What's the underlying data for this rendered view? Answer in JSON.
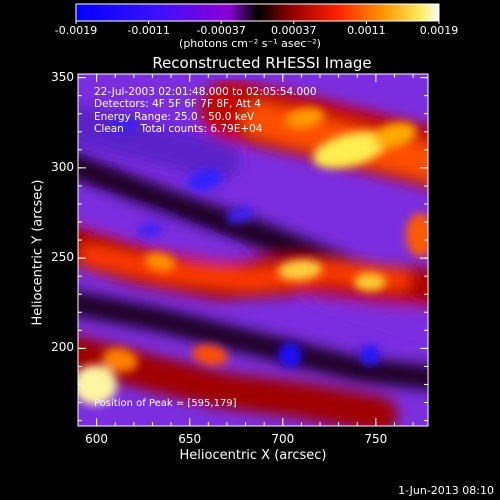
{
  "chart_data": {
    "type": "heatmap",
    "title": "Reconstructed RHESSI Image",
    "xlabel": "Heliocentric X (arcsec)",
    "ylabel": "Heliocentric Y (arcsec)",
    "xlim": [
      590,
      778
    ],
    "ylim": [
      157,
      352
    ],
    "x_ticks": [
      "600",
      "650",
      "700",
      "750"
    ],
    "y_ticks": [
      "200",
      "250",
      "300",
      "350"
    ],
    "colorbar": {
      "ticks": [
        "-0.0019",
        "-0.0011",
        "-0.00037",
        "0.00037",
        "0.0011",
        "0.0019"
      ],
      "range": [
        -0.0019,
        0.0019
      ],
      "units_label": "(photons cm⁻² s⁻¹ asec⁻²)"
    },
    "annotations": [
      "22-Jul-2003 02:01:48.000 to 02:05:54.000",
      "Detectors: 4F 5F 6F 7F 8F, Att 4",
      "Energy Range: 25.0 - 50.0 keV",
      "Clean     Total counts: 6.79E+04"
    ],
    "peak_label": "Position of Peak = [595,179]",
    "peak": [
      595,
      179
    ]
  },
  "footer_date": "1-Jun-2013 08:10"
}
